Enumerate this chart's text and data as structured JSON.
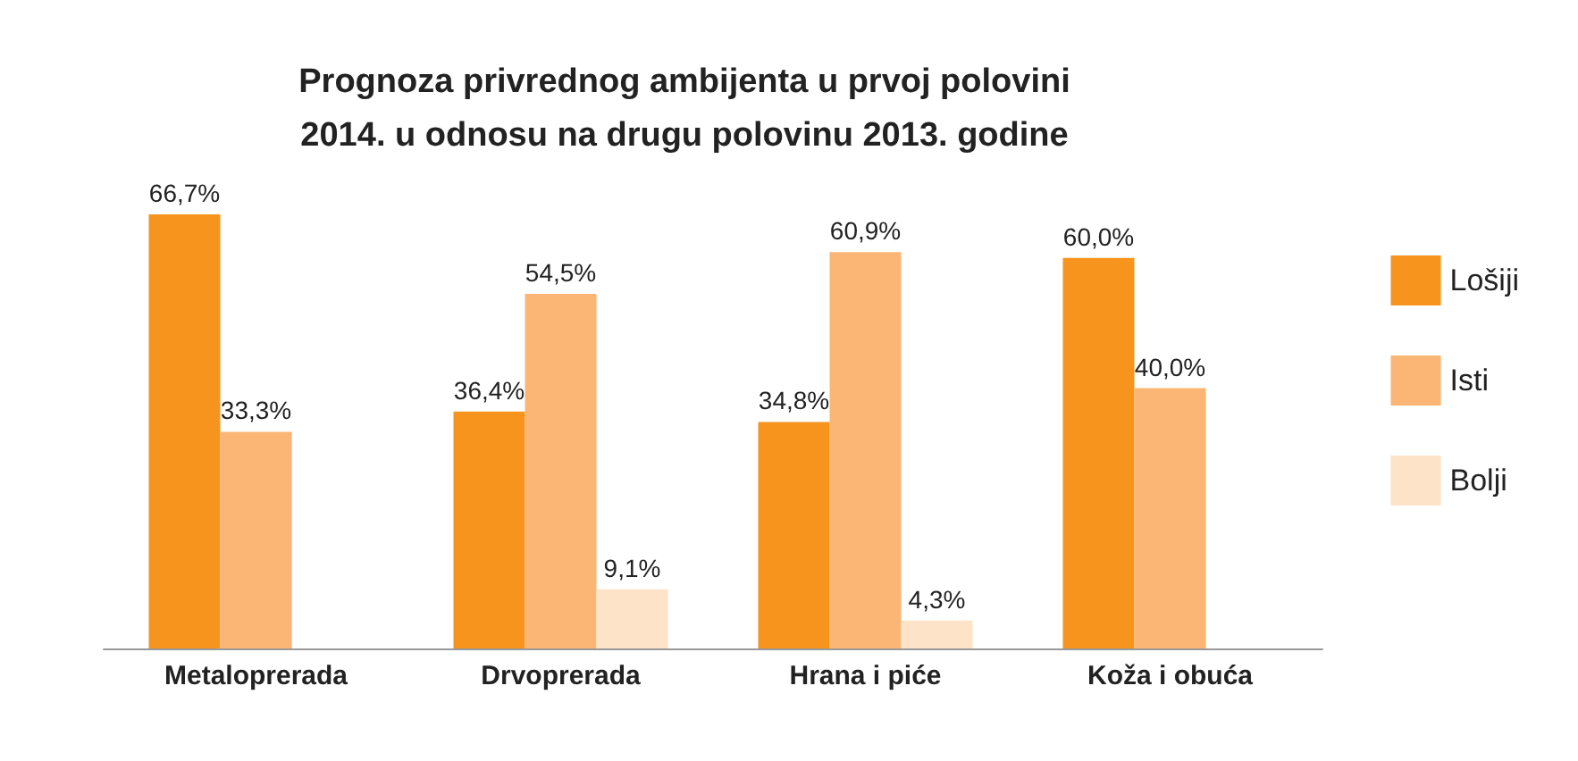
{
  "chart_data": {
    "type": "bar",
    "title": "Prognoza privrednog ambijenta u prvoj polovini\n2014. u odnosu na drugu polovinu 2013. godine",
    "categories": [
      "Metaloprerada",
      "Drvoprerada",
      "Hrana i piće",
      "Koža i obuća"
    ],
    "series": [
      {
        "name": "Lošiji",
        "color": "#f7941d",
        "values": [
          66.7,
          36.4,
          34.8,
          60.0
        ],
        "value_labels": [
          "66,7%",
          "36,4%",
          "34,8%",
          "60,0%"
        ]
      },
      {
        "name": "Isti",
        "color": "#fbb574",
        "values": [
          33.3,
          54.5,
          60.9,
          40.0
        ],
        "value_labels": [
          "33,3%",
          "54,5%",
          "60,9%",
          "40,0%"
        ]
      },
      {
        "name": "Bolji",
        "color": "#fde3c8",
        "values": [
          null,
          9.1,
          4.3,
          null
        ],
        "value_labels": [
          null,
          "9,1%",
          "4,3%",
          null
        ]
      }
    ],
    "legend": "right"
  }
}
